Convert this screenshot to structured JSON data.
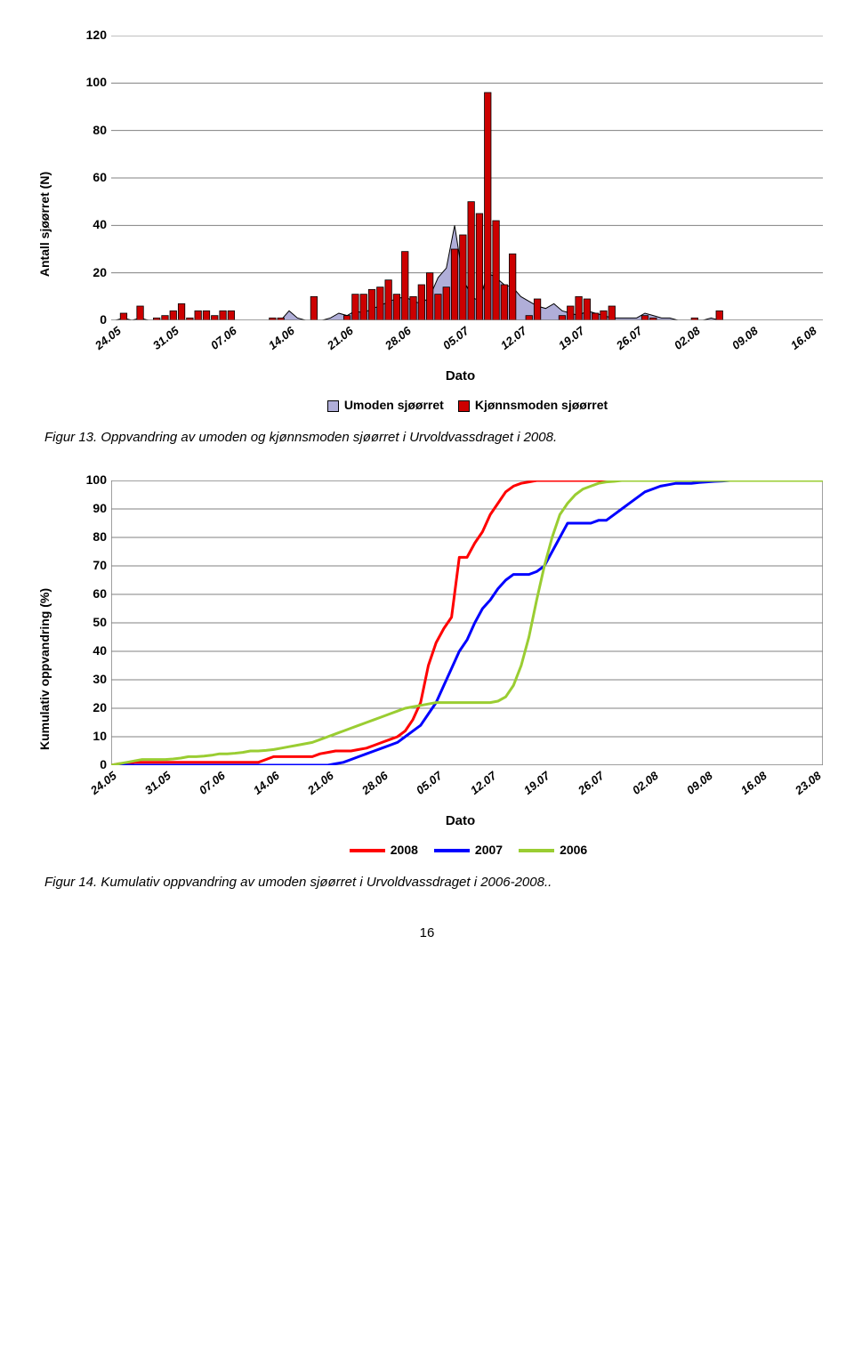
{
  "bar_chart": {
    "type": "bar+area",
    "ylabel": "Antall sjøørret (N)",
    "xlabel": "Dato",
    "ylim": [
      0,
      120
    ],
    "ytick_step": 20,
    "background_color": "#ffffff",
    "frame_color": "#808080",
    "grid_color": "#808080",
    "bar_border_color": "#000000",
    "area_series": {
      "name": "Umoden sjøørret",
      "fill": "#b0aed8",
      "stroke": "#000000",
      "values": [
        0,
        1,
        0,
        1,
        0,
        0,
        0,
        0,
        0,
        0,
        0,
        0,
        0,
        0,
        0,
        0,
        0,
        0,
        0,
        0,
        0,
        4,
        1,
        0,
        0,
        0,
        1,
        3,
        2,
        4,
        3,
        5,
        6,
        8,
        9,
        10,
        8,
        7,
        10,
        18,
        22,
        40,
        18,
        10,
        8,
        20,
        18,
        15,
        14,
        10,
        8,
        6,
        5,
        7,
        4,
        3,
        2,
        4,
        3,
        2,
        1,
        1,
        1,
        1,
        3,
        2,
        1,
        1,
        0,
        0,
        0,
        0,
        1,
        0,
        0,
        0,
        0,
        0,
        0,
        0,
        0,
        0,
        0,
        0,
        0,
        0
      ]
    },
    "bar_series": {
      "name": "Kjønnsmoden sjøørret",
      "fill": "#cc0000",
      "stroke": "#000000",
      "values": [
        0,
        3,
        0,
        6,
        0,
        1,
        2,
        4,
        7,
        1,
        4,
        4,
        2,
        4,
        4,
        0,
        0,
        0,
        0,
        1,
        1,
        0,
        0,
        0,
        10,
        0,
        0,
        0,
        2,
        11,
        11,
        13,
        14,
        17,
        11,
        29,
        10,
        15,
        20,
        11,
        14,
        30,
        36,
        50,
        45,
        96,
        42,
        15,
        28,
        0,
        2,
        9,
        0,
        0,
        2,
        6,
        10,
        9,
        3,
        4,
        6,
        0,
        0,
        0,
        2,
        1,
        0,
        0,
        0,
        0,
        1,
        0,
        0,
        4,
        0,
        0,
        0,
        0,
        0,
        0,
        0,
        0,
        0,
        0,
        0,
        0
      ]
    },
    "xticks": [
      "24.05",
      "31.05",
      "07.06",
      "14.06",
      "21.06",
      "28.06",
      "05.07",
      "12.07",
      "19.07",
      "26.07",
      "02.08",
      "09.08",
      "16.08"
    ],
    "xtick_step_days": 7,
    "legend_items": [
      {
        "swatch": "#b0aed8",
        "label": "Umoden sjøørret"
      },
      {
        "swatch": "#cc0000",
        "label": "Kjønnsmoden sjøørret"
      }
    ]
  },
  "caption1": "Figur 13. Oppvandring av umoden og kjønnsmoden sjøørret i Urvoldvassdraget i 2008.",
  "line_chart": {
    "type": "line",
    "ylabel": "Kumulativ oppvandring (%)",
    "xlabel": "Dato",
    "ylim": [
      0,
      100
    ],
    "ytick_step": 10,
    "background_color": "#ffffff",
    "frame_color": "#808080",
    "grid_color": "#808080",
    "line_width": 3,
    "series": [
      {
        "name": "2008",
        "color": "#ff0000",
        "values": [
          0,
          0.5,
          0.5,
          1,
          1,
          1,
          1,
          1,
          1,
          1,
          1,
          1,
          1,
          1,
          1,
          1,
          1,
          1,
          1,
          1,
          2,
          3,
          3,
          3,
          3,
          3,
          3,
          4,
          4.5,
          5,
          5,
          5,
          5.5,
          6,
          7,
          8,
          9,
          10,
          12,
          16,
          22,
          35,
          43,
          48,
          52,
          73,
          73,
          78,
          82,
          88,
          92,
          96,
          98,
          99,
          99.5,
          100,
          100,
          100,
          100,
          100,
          100,
          100,
          100,
          100,
          100,
          100,
          100,
          100,
          100,
          100,
          100,
          100,
          100,
          100,
          100,
          100,
          100,
          100,
          100,
          100,
          100,
          100,
          100,
          100,
          100,
          100,
          100,
          100,
          100,
          100,
          100,
          100,
          100
        ]
      },
      {
        "name": "2007",
        "color": "#0000ff",
        "values": [
          0,
          0,
          0,
          0,
          0,
          0,
          0,
          0,
          0,
          0,
          0,
          0,
          0,
          0,
          0,
          0,
          0,
          0,
          0,
          0,
          0,
          0,
          0,
          0,
          0,
          0,
          0,
          0,
          0,
          0.5,
          1,
          2,
          3,
          4,
          5,
          6,
          7,
          8,
          10,
          12,
          14,
          18,
          22,
          28,
          34,
          40,
          44,
          50,
          55,
          58,
          62,
          65,
          67,
          67,
          67,
          68,
          70,
          75,
          80,
          85,
          85,
          85,
          85,
          86,
          86,
          88,
          90,
          92,
          94,
          96,
          97,
          98,
          98.5,
          99,
          99,
          99,
          99.3,
          99.5,
          99.7,
          99.8,
          100,
          100,
          100,
          100,
          100,
          100,
          100,
          100,
          100,
          100,
          100,
          100,
          100
        ]
      },
      {
        "name": "2006",
        "color": "#9acd32",
        "values": [
          0,
          0.5,
          1,
          1.5,
          2,
          2,
          2,
          2,
          2.2,
          2.5,
          3,
          3,
          3.2,
          3.5,
          4,
          4,
          4.2,
          4.5,
          5,
          5,
          5.2,
          5.5,
          6,
          6.5,
          7,
          7.5,
          8,
          9,
          10,
          11,
          12,
          13,
          14,
          15,
          16,
          17,
          18,
          19,
          20,
          20.5,
          21,
          21.5,
          22,
          22,
          22,
          22,
          22,
          22,
          22,
          22,
          22.5,
          24,
          28,
          35,
          45,
          58,
          70,
          80,
          88,
          92,
          95,
          97,
          98,
          99,
          99.5,
          99.7,
          100,
          100,
          100,
          100,
          100,
          100,
          100,
          100,
          100,
          100,
          100,
          100,
          100,
          100,
          100,
          100,
          100,
          100,
          100,
          100,
          100,
          100,
          100,
          100,
          100,
          100,
          100
        ]
      }
    ],
    "xticks": [
      "24.05",
      "31.05",
      "07.06",
      "14.06",
      "21.06",
      "28.06",
      "05.07",
      "12.07",
      "19.07",
      "26.07",
      "02.08",
      "09.08",
      "16.08",
      "23.08"
    ],
    "xtick_step_days": 7,
    "legend_items": [
      {
        "color": "#ff0000",
        "label": "2008"
      },
      {
        "color": "#0000ff",
        "label": "2007"
      },
      {
        "color": "#9acd32",
        "label": "2006"
      }
    ]
  },
  "caption2": "Figur 14. Kumulativ oppvandring av umoden sjøørret i Urvoldvassdraget i 2006-2008..",
  "page_number": "16"
}
